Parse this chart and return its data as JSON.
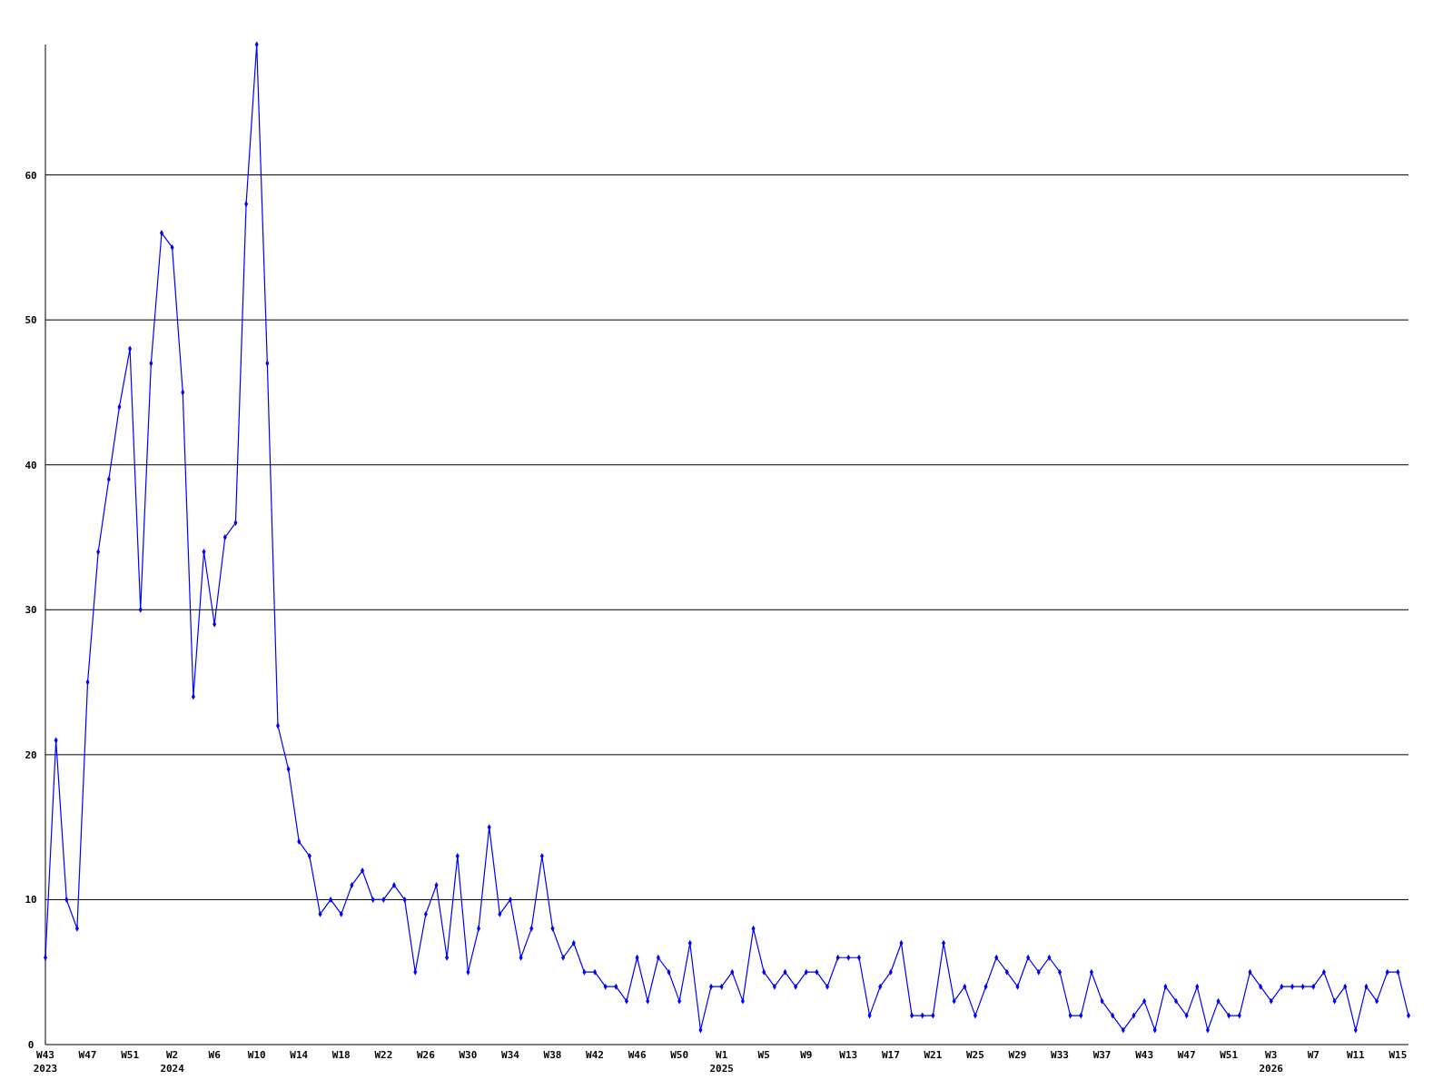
{
  "chart_data": {
    "type": "line",
    "categories": [
      "W43\n2023",
      null,
      null,
      null,
      "W47",
      null,
      null,
      null,
      "W51",
      null,
      null,
      null,
      "W2\n2024",
      null,
      null,
      null,
      "W6",
      null,
      null,
      null,
      "W10",
      null,
      null,
      null,
      "W14",
      null,
      null,
      null,
      "W18",
      null,
      null,
      null,
      "W22",
      null,
      null,
      null,
      "W26",
      null,
      null,
      null,
      "W30",
      null,
      null,
      null,
      "W34",
      null,
      null,
      null,
      "W38",
      null,
      null,
      null,
      "W42",
      null,
      null,
      null,
      "W46",
      null,
      null,
      null,
      "W50",
      null,
      null,
      null,
      "W1\n2025",
      null,
      null,
      null,
      "W5",
      null,
      null,
      null,
      "W9",
      null,
      null,
      null,
      "W13",
      null,
      null,
      null,
      "W17",
      null,
      null,
      null,
      "W21",
      null,
      null,
      null,
      "W25",
      null,
      null,
      null,
      "W29",
      null,
      null,
      null,
      "W33",
      null,
      null,
      null,
      "W37",
      null,
      null,
      null,
      "W43",
      null,
      null,
      null,
      "W47",
      null,
      null,
      null,
      "W51",
      null,
      null,
      null,
      "W3\n2026",
      null,
      null,
      null,
      "W7",
      null,
      null,
      null,
      "W11",
      null,
      null,
      null,
      "W15",
      null
    ],
    "series": [
      {
        "color": "#0000ff",
        "values": [
          6,
          21,
          10,
          8,
          25,
          34,
          39,
          44,
          48,
          30,
          47,
          56,
          55,
          45,
          24,
          34,
          29,
          35,
          36,
          58,
          69,
          47,
          22,
          19,
          14,
          13,
          9,
          10,
          9,
          11,
          12,
          10,
          10,
          11,
          10,
          5,
          9,
          11,
          6,
          13,
          5,
          8,
          15,
          9,
          10,
          6,
          8,
          13,
          8,
          6,
          7,
          5,
          5,
          4,
          4,
          3,
          6,
          3,
          6,
          5,
          3,
          7,
          1,
          4,
          4,
          5,
          3,
          8,
          5,
          4,
          5,
          4,
          5,
          5,
          4,
          6,
          6,
          6,
          2,
          4,
          5,
          7,
          2,
          2,
          2,
          7,
          3,
          4,
          2,
          4,
          6,
          5,
          4,
          6,
          5,
          6,
          5,
          2,
          2,
          5,
          3,
          2,
          1,
          2,
          3,
          1,
          4,
          3,
          2,
          4,
          1,
          3,
          2,
          2,
          5,
          4,
          3,
          4,
          4,
          4,
          4,
          5,
          3,
          4,
          1,
          4,
          3,
          5,
          5,
          2
        ]
      }
    ],
    "ylim": [
      0,
      69
    ],
    "yticks": [
      0,
      10,
      20,
      30,
      40,
      50,
      60
    ],
    "grid": "y",
    "marker": "diamond",
    "line_style": "solid"
  }
}
